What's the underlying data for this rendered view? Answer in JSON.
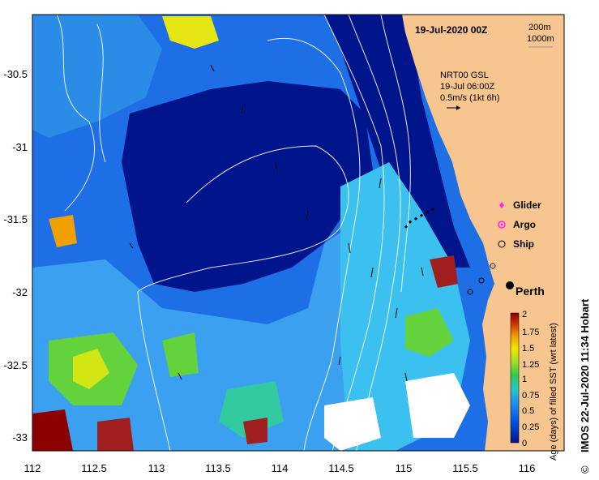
{
  "map": {
    "date_title": "19-Jul-2020 00Z",
    "depth_legend": [
      "200m",
      "1000m"
    ],
    "current_info": [
      "NRT00 GSL",
      "19-Jul 06:00Z",
      "0.5m/s (1kt 6h)"
    ],
    "legend_items": [
      {
        "label": "Glider",
        "color": "#ff22ff",
        "marker": "diamond"
      },
      {
        "label": "Argo",
        "color": "#ff22ff",
        "marker": "circle-star"
      },
      {
        "label": "Ship",
        "color": "#000000",
        "marker": "open-circle"
      }
    ],
    "city": "Perth",
    "credit": "IMOS 22-Jul-2020 11:34 Hobart",
    "copyright_symbol": "©",
    "x_ticks": [
      "112",
      "112.5",
      "113",
      "113.5",
      "114",
      "114.5",
      "115",
      "115.5",
      "116"
    ],
    "y_ticks": [
      "-30.5",
      "-31",
      "-31.5",
      "-32",
      "-32.5",
      "-33"
    ],
    "colors": {
      "land": "#f7c58f",
      "deep": "#00148c",
      "mid": "#1e6ee6",
      "light": "#3cb4f0"
    }
  },
  "colorbar": {
    "label": "Age (days) of filled SST (wrt latest)",
    "ticks": [
      "2",
      "1.75",
      "1.5",
      "1.25",
      "1",
      "0.75",
      "0.5",
      "0.25",
      "0"
    ],
    "range": [
      0,
      2
    ]
  }
}
